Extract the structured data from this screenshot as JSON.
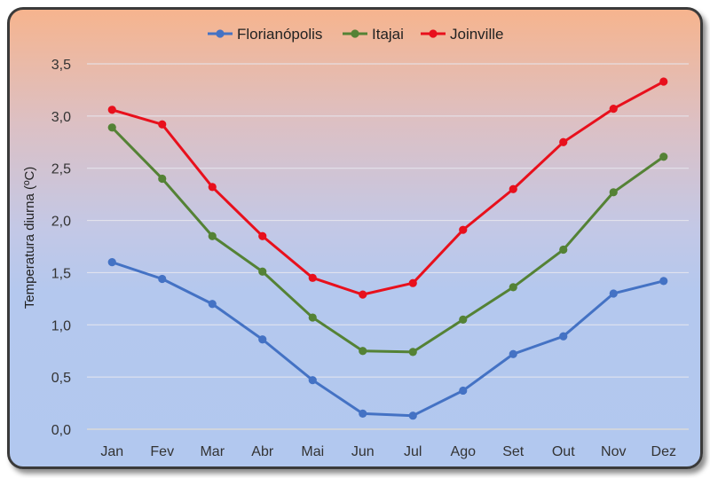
{
  "chart_data": {
    "type": "line",
    "title": "",
    "xlabel": "",
    "ylabel": "Temperatura diurna (ºC)",
    "ylim": [
      0,
      3.5
    ],
    "yticks": [
      "0,0",
      "0,5",
      "1,0",
      "1,5",
      "2,0",
      "2,5",
      "3,0",
      "3,5"
    ],
    "yticks_values": [
      0,
      0.5,
      1.0,
      1.5,
      2.0,
      2.5,
      3.0,
      3.5
    ],
    "grid": true,
    "legend_position": "top",
    "categories": [
      "Jan",
      "Fev",
      "Mar",
      "Abr",
      "Mai",
      "Jun",
      "Jul",
      "Ago",
      "Set",
      "Out",
      "Nov",
      "Dez"
    ],
    "series": [
      {
        "name": "Florianópolis",
        "color": "#4472c4",
        "values": [
          1.6,
          1.44,
          1.2,
          0.86,
          0.47,
          0.15,
          0.13,
          0.37,
          0.72,
          0.89,
          1.3,
          1.42
        ]
      },
      {
        "name": "Itajai",
        "color": "#548235",
        "values": [
          2.89,
          2.4,
          1.85,
          1.51,
          1.07,
          0.75,
          0.74,
          1.05,
          1.36,
          1.72,
          2.27,
          2.61
        ]
      },
      {
        "name": "Joinville",
        "color": "#e8101c",
        "values": [
          3.06,
          2.92,
          2.32,
          1.85,
          1.45,
          1.29,
          1.4,
          1.91,
          2.3,
          2.75,
          3.07,
          3.33
        ]
      }
    ]
  }
}
